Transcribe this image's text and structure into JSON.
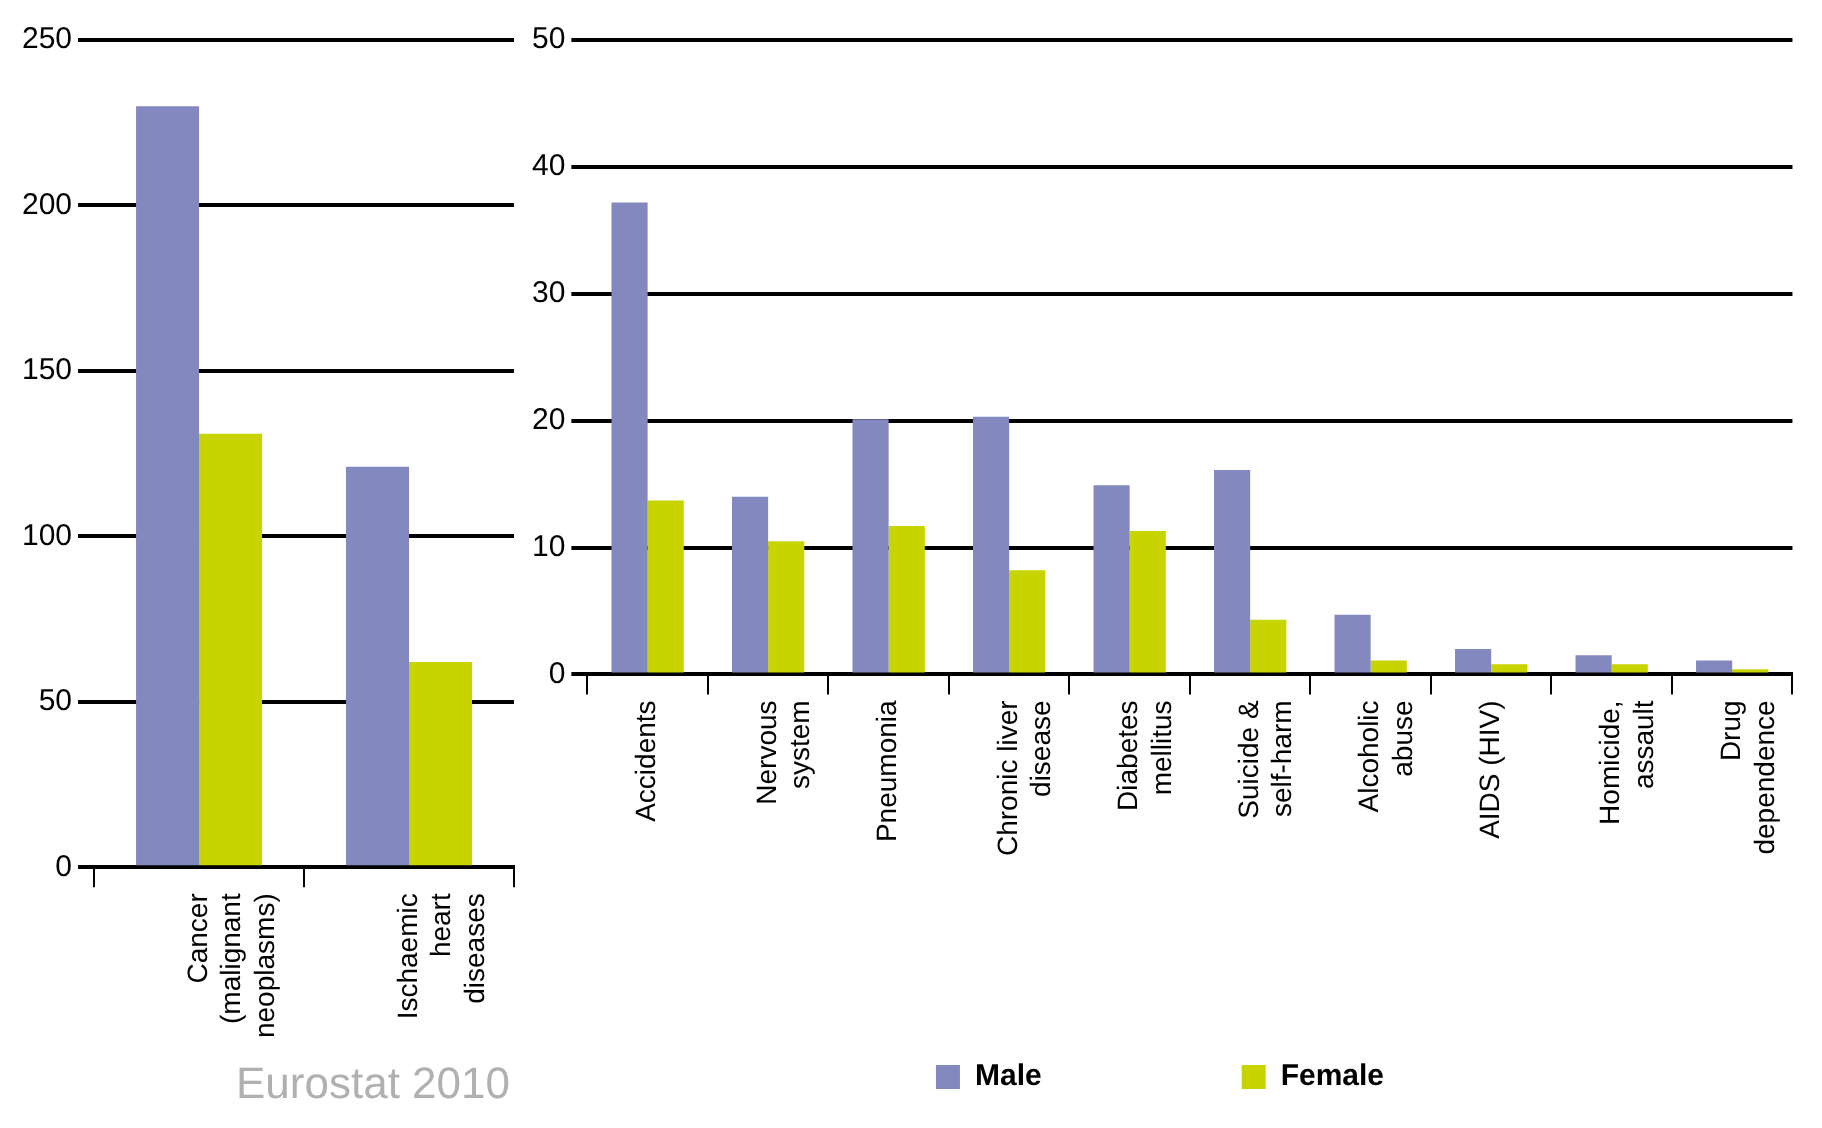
{
  "chart_data": [
    {
      "type": "bar",
      "categories": [
        "Cancer (malignant neoplasms)",
        "Ischaemic heart diseases"
      ],
      "series": [
        {
          "color": "#8389bf",
          "values": [
            230,
            121
          ]
        },
        {
          "color": "#c8d400",
          "values": [
            131,
            62
          ]
        }
      ],
      "ylim": [
        0,
        250
      ],
      "yticks": [
        0,
        50,
        100,
        150,
        200,
        250
      ],
      "grid": "y",
      "legend": false,
      "annotations": [
        "Eurostat 2010"
      ]
    },
    {
      "type": "bar",
      "categories": [
        "Accidents",
        "Nervous system",
        "Pneumonia",
        "Chronic liver disease",
        "Diabetes mellitus",
        "Suicide & self-harm",
        "Alcoholic abuse",
        "AIDS (HIV)",
        "Homicide, assault",
        "Drug dependence"
      ],
      "series": [
        {
          "name": "Male",
          "color": "#8389bf",
          "values": [
            37.2,
            14,
            20.1,
            20.3,
            14.9,
            16.1,
            4.7,
            2,
            1.5,
            1.1
          ]
        },
        {
          "name": "Female",
          "color": "#c8d400",
          "values": [
            13.7,
            10.5,
            11.7,
            8.2,
            11.3,
            4.3,
            1.1,
            0.8,
            0.8,
            0.4
          ]
        }
      ],
      "ylim": [
        0,
        50
      ],
      "yticks": [
        0,
        10,
        20,
        30,
        40,
        50
      ],
      "grid": "y",
      "legend": "bottom"
    }
  ]
}
